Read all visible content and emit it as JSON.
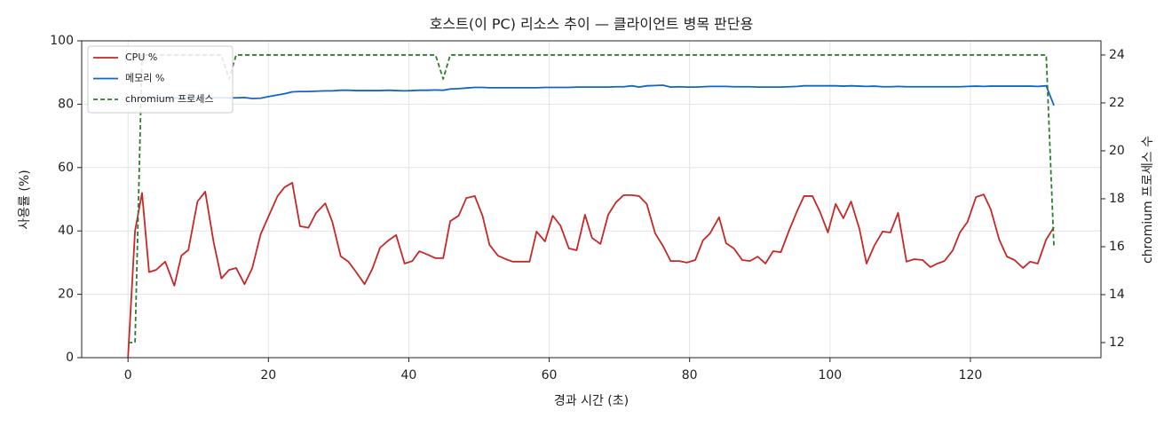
{
  "chart_data": {
    "type": "line",
    "title": "호스트(이 PC) 리소스 추이 — 클라이언트 병목 판단용",
    "x_label": "경과 시간 (초)",
    "y_label": "사용률 (%)",
    "y2_label": "chromium 프로세스 수",
    "x": [
      0,
      1,
      2,
      3,
      4,
      5.3,
      6.6,
      7.6,
      8.6,
      9.9,
      11,
      12.2,
      13.3,
      14.4,
      15.4,
      16.6,
      17.7,
      18.9,
      20,
      21.3,
      22.3,
      23.4,
      24.5,
      25.7,
      26.8,
      28.1,
      29.1,
      30.3,
      31.4,
      32.5,
      33.7,
      34.8,
      35.9,
      37.1,
      38.2,
      39.4,
      40.5,
      41.5,
      42.7,
      43.8,
      44.9,
      45.9,
      47.1,
      48.2,
      49.4,
      50.5,
      51.5,
      52.7,
      53.8,
      54.8,
      57.2,
      58.2,
      59.4,
      60.5,
      61.6,
      62.8,
      63.9,
      65.1,
      66.1,
      67.3,
      68.4,
      69.5,
      70.6,
      71.8,
      72.8,
      73.9,
      75.1,
      76.2,
      77.3,
      78.5,
      79.6,
      80.8,
      81.9,
      82.9,
      84.2,
      85.2,
      86.3,
      87.5,
      88.6,
      89.7,
      90.8,
      91.9,
      93,
      94.2,
      95.3,
      96.3,
      97.5,
      98.6,
      99.7,
      100.8,
      101.9,
      103,
      104.2,
      105.2,
      106.3,
      107.5,
      108.6,
      109.7,
      110.9,
      112,
      113.2,
      114.3,
      115.3,
      116.3,
      117.5,
      118.5,
      119.6,
      120.8,
      121.9,
      122.9,
      124.1,
      125.2,
      126.3,
      127.5,
      128.5,
      129.6,
      130.8,
      131.9
    ],
    "series": [
      {
        "name": "CPU %",
        "color": "#c62828",
        "style": "solid",
        "axis": "y",
        "values": [
          0,
          40,
          52,
          27,
          27.7,
          30.3,
          22.7,
          32.2,
          34,
          49.3,
          52.4,
          36.4,
          25,
          27.7,
          28.3,
          23.2,
          28.3,
          39,
          44.5,
          51,
          53.8,
          55.2,
          41.5,
          41,
          45.7,
          48.7,
          42.9,
          32,
          30.3,
          27,
          23.2,
          28,
          34.7,
          37,
          38.7,
          29.7,
          30.5,
          33.6,
          32.5,
          31.4,
          31.4,
          43.1,
          44.8,
          50.4,
          51,
          44.8,
          35.6,
          32.2,
          31.1,
          30.3,
          30.3,
          39.8,
          36.7,
          44.8,
          41.7,
          34.5,
          33.9,
          45.1,
          37.8,
          35.9,
          45.1,
          49,
          51.3,
          51.3,
          51,
          48.5,
          39.2,
          35.3,
          30.5,
          30.5,
          30,
          30.8,
          37,
          39.2,
          44.3,
          36.1,
          34.5,
          30.8,
          30.5,
          31.9,
          29.7,
          33.6,
          33.3,
          40.3,
          46.2,
          51,
          51,
          45.9,
          39.5,
          48.5,
          44,
          49.3,
          40.6,
          29.7,
          35.3,
          39.8,
          39.5,
          45.7,
          30.3,
          31.1,
          30.8,
          28.6,
          29.7,
          30.5,
          33.9,
          39.5,
          42.9,
          50.7,
          51.5,
          46.8,
          37.3,
          31.9,
          30.8,
          28.3,
          30.3,
          29.7,
          37.3,
          41.2
        ]
      },
      {
        "name": "메모리 %",
        "color": "#1565c0",
        "style": "solid",
        "axis": "y",
        "values": [
          81,
          81.5,
          81.8,
          82,
          82,
          82,
          82,
          82,
          82,
          82,
          82,
          82,
          82,
          82,
          82,
          82.1,
          81.8,
          81.9,
          82.4,
          82.9,
          83.3,
          83.9,
          84,
          84,
          84.1,
          84.2,
          84.2,
          84.4,
          84.4,
          84.3,
          84.3,
          84.3,
          84.3,
          84.4,
          84.3,
          84.2,
          84.3,
          84.4,
          84.4,
          84.5,
          84.4,
          84.8,
          84.9,
          85.1,
          85.3,
          85.3,
          85.2,
          85.2,
          85.2,
          85.2,
          85.2,
          85.2,
          85.3,
          85.3,
          85.3,
          85.3,
          85.4,
          85.4,
          85.4,
          85.4,
          85.4,
          85.5,
          85.5,
          85.8,
          85.4,
          85.8,
          85.9,
          86,
          85.4,
          85.5,
          85.4,
          85.4,
          85.5,
          85.6,
          85.6,
          85.6,
          85.5,
          85.5,
          85.5,
          85.4,
          85.4,
          85.4,
          85.4,
          85.5,
          85.6,
          85.8,
          85.8,
          85.8,
          85.8,
          85.8,
          85.7,
          85.8,
          85.7,
          85.6,
          85.7,
          85.5,
          85.5,
          85.6,
          85.5,
          85.5,
          85.5,
          85.5,
          85.5,
          85.5,
          85.5,
          85.5,
          85.6,
          85.7,
          85.6,
          85.7,
          85.7,
          85.7,
          85.7,
          85.7,
          85.7,
          85.6,
          85.8,
          79.6
        ]
      },
      {
        "name": "chromium 프로세스",
        "color": "#2e7d32",
        "style": "dashed",
        "axis": "y2",
        "values": [
          12,
          12,
          24,
          24,
          24,
          24,
          24,
          24,
          24,
          24,
          24,
          24,
          24,
          23,
          24,
          24,
          24,
          24,
          24,
          24,
          24,
          24,
          24,
          24,
          24,
          24,
          24,
          24,
          24,
          24,
          24,
          24,
          24,
          24,
          24,
          24,
          24,
          24,
          24,
          24,
          23,
          24,
          24,
          24,
          24,
          24,
          24,
          24,
          24,
          24,
          24,
          24,
          24,
          24,
          24,
          24,
          24,
          24,
          24,
          24,
          24,
          24,
          24,
          24,
          24,
          24,
          24,
          24,
          24,
          24,
          24,
          24,
          24,
          24,
          24,
          24,
          24,
          24,
          24,
          24,
          24,
          24,
          24,
          24,
          24,
          24,
          24,
          24,
          24,
          24,
          24,
          24,
          24,
          24,
          24,
          24,
          24,
          24,
          24,
          24,
          24,
          24,
          24,
          24,
          24,
          24,
          24,
          24,
          24,
          24,
          24,
          24,
          24,
          24,
          24,
          24,
          24,
          16
        ]
      }
    ],
    "xlim": [
      -6.6,
      138.6
    ],
    "xticks": [
      0,
      20,
      40,
      60,
      80,
      100,
      120
    ],
    "ylim": [
      0,
      100
    ],
    "yticks": [
      0,
      20,
      40,
      60,
      80,
      100
    ],
    "y2lim": [
      11.37,
      24.59
    ],
    "y2ticks": [
      12,
      14,
      16,
      18,
      20,
      22,
      24
    ],
    "grid": true,
    "legend": "upper left"
  }
}
